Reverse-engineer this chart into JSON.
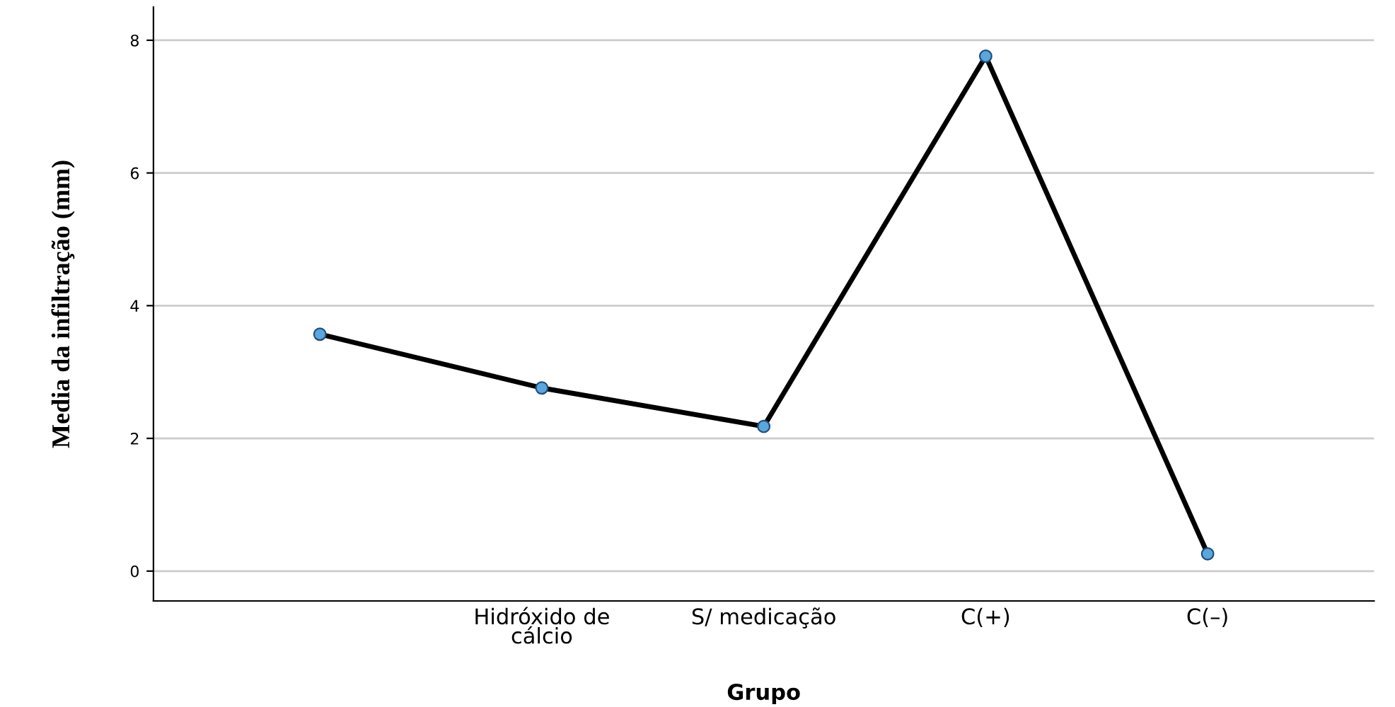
{
  "chart_data": {
    "type": "line",
    "xlabel": "Grupo",
    "ylabel": "Media da infiltração (mm)",
    "categories": [
      null,
      "Hidróxido de\ncálcio",
      "S/ medicação",
      "C(+)",
      "C(–)"
    ],
    "series": [
      {
        "color": "#000000",
        "colors": [
          "#5aa7dd",
          "#5aa7dd",
          "#5aa7dd",
          "#5aa7dd",
          "#5aa7dd"
        ],
        "values": [
          3.57,
          2.76,
          2.18,
          7.76,
          0.26
        ]
      }
    ],
    "ylim": [
      -0.45,
      8.5
    ],
    "yticks": [
      0,
      2,
      4,
      6,
      8
    ],
    "grid": "y",
    "marker": "circle",
    "line_style": "solid"
  }
}
